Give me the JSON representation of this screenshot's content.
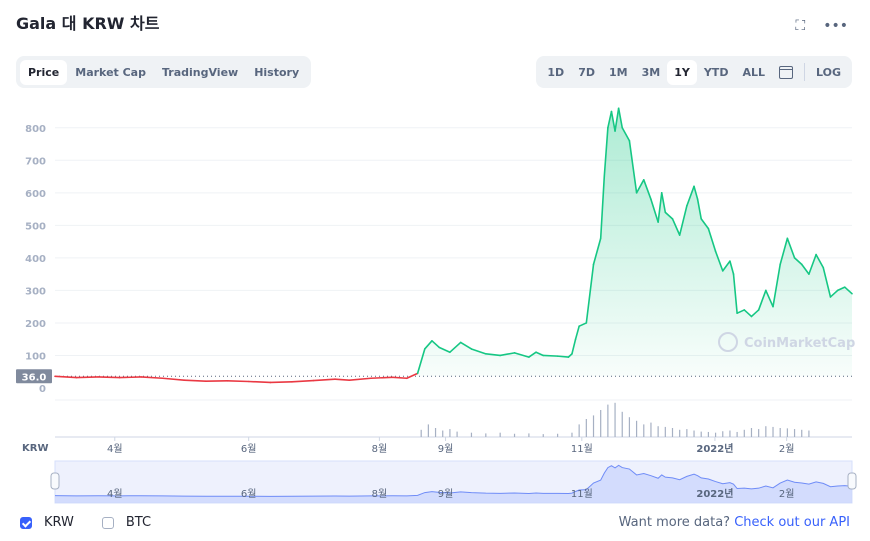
{
  "header": {
    "title": "Gala 대 KRW 차트",
    "fullscreen_icon": "expand-icon",
    "menu_icon": "more-icon"
  },
  "tabs": [
    {
      "label": "Price",
      "active": true
    },
    {
      "label": "Market Cap",
      "active": false
    },
    {
      "label": "TradingView",
      "active": false
    },
    {
      "label": "History",
      "active": false
    }
  ],
  "ranges": [
    {
      "label": "1D",
      "active": false
    },
    {
      "label": "7D",
      "active": false
    },
    {
      "label": "1M",
      "active": false
    },
    {
      "label": "3M",
      "active": false
    },
    {
      "label": "1Y",
      "active": true
    },
    {
      "label": "YTD",
      "active": false
    },
    {
      "label": "ALL",
      "active": false
    }
  ],
  "log_label": "LOG",
  "chart_data": {
    "type": "line",
    "currency": "KRW",
    "yticks": [
      0,
      100,
      200,
      300,
      400,
      500,
      600,
      700,
      800
    ],
    "ylim": [
      0,
      870
    ],
    "baseline_value": "36.0",
    "x_axis_label": "KRW",
    "xticks": [
      {
        "label": "4월",
        "t": 0.075
      },
      {
        "label": "6월",
        "t": 0.243
      },
      {
        "label": "8월",
        "t": 0.407
      },
      {
        "label": "9월",
        "t": 0.49
      },
      {
        "label": "11월",
        "t": 0.661
      },
      {
        "label": "2022년",
        "t": 0.828
      },
      {
        "label": "2월",
        "t": 0.918
      }
    ],
    "colors": {
      "up": "#16c784",
      "down": "#ea3943",
      "nav": "#6f8cf7"
    },
    "series": [
      {
        "name": "KRW",
        "points": [
          [
            0.0,
            36
          ],
          [
            0.03,
            32
          ],
          [
            0.06,
            34
          ],
          [
            0.09,
            32
          ],
          [
            0.12,
            34
          ],
          [
            0.15,
            30
          ],
          [
            0.18,
            24
          ],
          [
            0.21,
            21
          ],
          [
            0.24,
            22
          ],
          [
            0.27,
            20
          ],
          [
            0.3,
            17
          ],
          [
            0.33,
            19
          ],
          [
            0.36,
            23
          ],
          [
            0.39,
            27
          ],
          [
            0.41,
            24
          ],
          [
            0.44,
            30
          ],
          [
            0.47,
            33
          ],
          [
            0.49,
            30
          ],
          [
            0.505,
            45
          ],
          [
            0.515,
            120
          ],
          [
            0.525,
            145
          ],
          [
            0.535,
            125
          ],
          [
            0.55,
            110
          ],
          [
            0.565,
            140
          ],
          [
            0.58,
            120
          ],
          [
            0.6,
            105
          ],
          [
            0.62,
            100
          ],
          [
            0.64,
            108
          ],
          [
            0.66,
            95
          ],
          [
            0.67,
            110
          ],
          [
            0.68,
            100
          ],
          [
            0.7,
            98
          ],
          [
            0.715,
            95
          ],
          [
            0.72,
            105
          ],
          [
            0.725,
            150
          ],
          [
            0.73,
            190
          ],
          [
            0.74,
            200
          ],
          [
            0.75,
            380
          ],
          [
            0.76,
            460
          ],
          [
            0.765,
            650
          ],
          [
            0.77,
            800
          ],
          [
            0.775,
            850
          ],
          [
            0.78,
            790
          ],
          [
            0.785,
            860
          ],
          [
            0.79,
            800
          ],
          [
            0.8,
            760
          ],
          [
            0.81,
            600
          ],
          [
            0.82,
            640
          ],
          [
            0.83,
            580
          ],
          [
            0.84,
            510
          ],
          [
            0.845,
            600
          ],
          [
            0.85,
            540
          ],
          [
            0.86,
            520
          ],
          [
            0.87,
            470
          ],
          [
            0.88,
            560
          ],
          [
            0.89,
            620
          ],
          [
            0.895,
            580
          ],
          [
            0.9,
            520
          ],
          [
            0.91,
            490
          ],
          [
            0.92,
            420
          ],
          [
            0.93,
            360
          ],
          [
            0.94,
            390
          ],
          [
            0.945,
            350
          ],
          [
            0.95,
            230
          ],
          [
            0.96,
            240
          ],
          [
            0.97,
            220
          ],
          [
            0.98,
            240
          ],
          [
            0.99,
            300
          ],
          [
            1.0,
            250
          ],
          [
            1.01,
            380
          ],
          [
            1.02,
            460
          ],
          [
            1.03,
            400
          ],
          [
            1.04,
            380
          ],
          [
            1.05,
            350
          ],
          [
            1.06,
            410
          ],
          [
            1.07,
            370
          ],
          [
            1.08,
            280
          ],
          [
            1.09,
            300
          ],
          [
            1.1,
            310
          ],
          [
            1.11,
            290
          ]
        ]
      }
    ],
    "volume": [
      [
        0.51,
        20
      ],
      [
        0.52,
        35
      ],
      [
        0.53,
        25
      ],
      [
        0.54,
        18
      ],
      [
        0.55,
        22
      ],
      [
        0.56,
        15
      ],
      [
        0.58,
        12
      ],
      [
        0.6,
        10
      ],
      [
        0.62,
        12
      ],
      [
        0.64,
        9
      ],
      [
        0.66,
        10
      ],
      [
        0.68,
        8
      ],
      [
        0.7,
        9
      ],
      [
        0.72,
        12
      ],
      [
        0.73,
        35
      ],
      [
        0.74,
        50
      ],
      [
        0.75,
        60
      ],
      [
        0.76,
        75
      ],
      [
        0.77,
        90
      ],
      [
        0.78,
        95
      ],
      [
        0.79,
        70
      ],
      [
        0.8,
        55
      ],
      [
        0.81,
        45
      ],
      [
        0.82,
        35
      ],
      [
        0.83,
        40
      ],
      [
        0.84,
        30
      ],
      [
        0.85,
        28
      ],
      [
        0.86,
        25
      ],
      [
        0.87,
        20
      ],
      [
        0.88,
        22
      ],
      [
        0.89,
        18
      ],
      [
        0.9,
        15
      ],
      [
        0.91,
        14
      ],
      [
        0.92,
        12
      ],
      [
        0.93,
        16
      ],
      [
        0.94,
        18
      ],
      [
        0.95,
        14
      ],
      [
        0.96,
        20
      ],
      [
        0.97,
        25
      ],
      [
        0.98,
        22
      ],
      [
        0.99,
        30
      ],
      [
        1.0,
        28
      ],
      [
        1.01,
        25
      ],
      [
        1.02,
        24
      ],
      [
        1.03,
        22
      ],
      [
        1.04,
        20
      ],
      [
        1.05,
        18
      ]
    ]
  },
  "watermark": "CoinMarketCap",
  "legend": [
    {
      "label": "KRW",
      "checked": true
    },
    {
      "label": "BTC",
      "checked": false
    }
  ],
  "footer": {
    "prompt": "Want more data?",
    "link": "Check out our API"
  }
}
